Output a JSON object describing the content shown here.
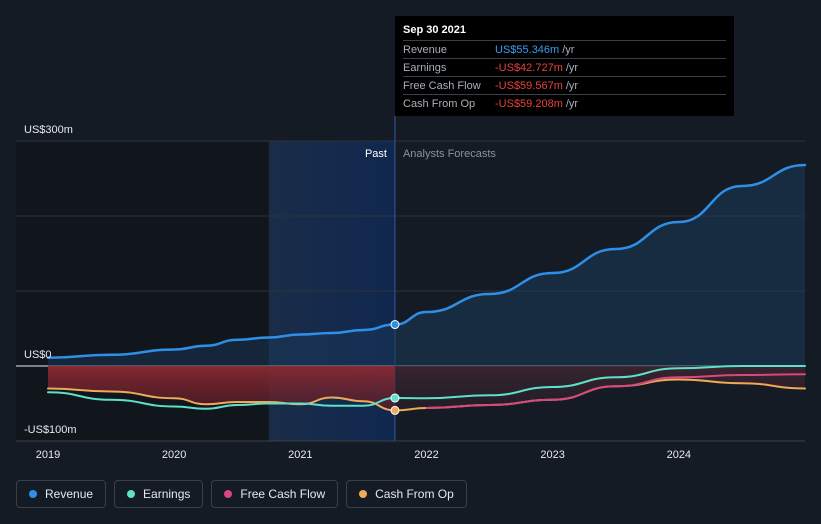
{
  "tooltip": {
    "date": "Sep 30 2021",
    "rows": [
      {
        "label": "Revenue",
        "value": "US$55.346m",
        "unit": "/yr",
        "color": "#3b9df0"
      },
      {
        "label": "Earnings",
        "value": "-US$42.727m",
        "unit": "/yr",
        "color": "#e8413d"
      },
      {
        "label": "Free Cash Flow",
        "value": "-US$59.567m",
        "unit": "/yr",
        "color": "#e8413d"
      },
      {
        "label": "Cash From Op",
        "value": "-US$59.208m",
        "unit": "/yr",
        "color": "#e8413d"
      }
    ]
  },
  "legend": [
    {
      "label": "Revenue",
      "color": "#2e8fe6"
    },
    {
      "label": "Earnings",
      "color": "#5fe0c8"
    },
    {
      "label": "Free Cash Flow",
      "color": "#d6487e"
    },
    {
      "label": "Cash From Op",
      "color": "#f0a957"
    }
  ],
  "chart_data": {
    "type": "line",
    "yticks": [
      "US$300m",
      "US$0",
      "-US$100m"
    ],
    "ylim": [
      -100,
      300
    ],
    "xlim": [
      2019,
      2025.0
    ],
    "xticks": [
      "2019",
      "2020",
      "2021",
      "2022",
      "2023",
      "2024"
    ],
    "past_label": "Past",
    "forecast_label": "Analysts Forecasts",
    "divider_x": 2021.75,
    "highlight_start_x": 2020.75,
    "series": [
      {
        "name": "Revenue",
        "color": "#2e8fe6",
        "points": [
          [
            2019,
            11
          ],
          [
            2019.5,
            15
          ],
          [
            2020,
            22
          ],
          [
            2020.25,
            27
          ],
          [
            2020.5,
            35
          ],
          [
            2020.75,
            38
          ],
          [
            2021,
            42
          ],
          [
            2021.25,
            44
          ],
          [
            2021.5,
            48
          ],
          [
            2021.75,
            55.3
          ],
          [
            2022,
            72
          ],
          [
            2022.5,
            96
          ],
          [
            2023,
            124
          ],
          [
            2023.5,
            156
          ],
          [
            2024,
            192
          ],
          [
            2024.5,
            240
          ],
          [
            2025,
            268
          ]
        ]
      },
      {
        "name": "Earnings",
        "color": "#5fe0c8",
        "points": [
          [
            2019,
            -35
          ],
          [
            2019.5,
            -45
          ],
          [
            2020,
            -54
          ],
          [
            2020.25,
            -57
          ],
          [
            2020.5,
            -52
          ],
          [
            2020.75,
            -50
          ],
          [
            2021,
            -50
          ],
          [
            2021.25,
            -53
          ],
          [
            2021.5,
            -53
          ],
          [
            2021.75,
            -42.7
          ],
          [
            2022,
            -43
          ],
          [
            2022.5,
            -39
          ],
          [
            2023,
            -28
          ],
          [
            2023.5,
            -15
          ],
          [
            2024,
            -3
          ],
          [
            2024.5,
            0
          ],
          [
            2025,
            0
          ]
        ]
      },
      {
        "name": "Free Cash Flow",
        "color": "#d6487e",
        "points": [
          [
            2022,
            -56
          ],
          [
            2022.5,
            -52
          ],
          [
            2023,
            -45
          ],
          [
            2023.5,
            -27
          ],
          [
            2024,
            -15
          ],
          [
            2024.5,
            -12
          ],
          [
            2025,
            -11
          ]
        ]
      },
      {
        "name": "Cash From Op",
        "color": "#f0a957",
        "points": [
          [
            2019,
            -30
          ],
          [
            2019.5,
            -34
          ],
          [
            2020,
            -43
          ],
          [
            2020.25,
            -51
          ],
          [
            2020.5,
            -48
          ],
          [
            2020.75,
            -48
          ],
          [
            2021,
            -51
          ],
          [
            2021.25,
            -42
          ],
          [
            2021.5,
            -47
          ],
          [
            2021.75,
            -59.2
          ],
          [
            2022,
            -56
          ],
          [
            2022.5,
            -52
          ],
          [
            2023,
            -45
          ],
          [
            2023.5,
            -27
          ],
          [
            2024,
            -18
          ],
          [
            2024.5,
            -23
          ],
          [
            2025,
            -30
          ]
        ]
      }
    ]
  }
}
